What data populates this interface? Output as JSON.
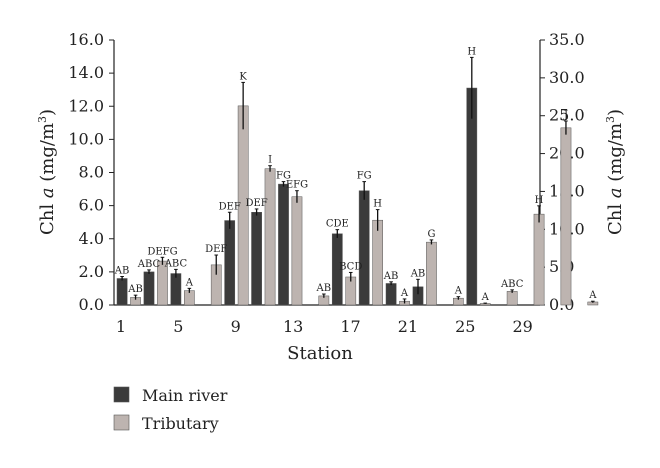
{
  "chart_data": {
    "type": "bar",
    "xlabel": "Station",
    "ylabel_left": {
      "prefix": "Chl ",
      "italic": "a",
      "unit": " (mg/m",
      "sup": "3",
      "close": ")"
    },
    "ylabel_right": {
      "prefix": "Chl ",
      "italic": "a",
      "unit": " (mg/m",
      "sup": "3",
      "close": ")"
    },
    "ylim_left": [
      0,
      16
    ],
    "ylim_right": [
      0,
      35
    ],
    "yticks_left": [
      "0.0",
      "2.0",
      "4.0",
      "6.0",
      "8.0",
      "10.0",
      "12.0",
      "14.0",
      "16.0"
    ],
    "yticks_right": [
      "0.0",
      "5.0",
      "10.0",
      "15.0",
      "20.0",
      "25.0",
      "30.0",
      "35.0"
    ],
    "xticks": [
      "1",
      "5",
      "9",
      "13",
      "17",
      "21",
      "25",
      "29"
    ],
    "x_range": [
      1,
      30
    ],
    "legend": {
      "position": "bottom-left",
      "main_label": "Main river",
      "trib_label": "Tributary"
    },
    "colors": {
      "main": "#3b3b3b",
      "trib": "#bdb4b0"
    },
    "series": [
      {
        "name": "Main river",
        "axis": "left",
        "points": [
          {
            "station": 1,
            "value": 1.6,
            "error": 0.12,
            "label": "AB"
          },
          {
            "station": 3,
            "value": 2.0,
            "error": 0.12,
            "label": "ABC"
          },
          {
            "station": 5,
            "value": 1.9,
            "error": 0.25,
            "label": "ABC"
          },
          {
            "station": 9,
            "value": 5.1,
            "error": 0.5,
            "label": "DEF"
          },
          {
            "station": 11,
            "value": 5.6,
            "error": 0.2,
            "label": "DEF"
          },
          {
            "station": 13,
            "value": 7.3,
            "error": 0.15,
            "label": "FG"
          },
          {
            "station": 17,
            "value": 4.3,
            "error": 0.25,
            "label": "CDE"
          },
          {
            "station": 19,
            "value": 6.9,
            "error": 0.55,
            "label": "FG"
          },
          {
            "station": 21,
            "value": 1.3,
            "error": 0.1,
            "label": "AB"
          },
          {
            "station": 23,
            "value": 1.1,
            "error": 0.45,
            "label": "AB"
          },
          {
            "station": 27,
            "value": 13.1,
            "error": 1.85,
            "label": "H"
          }
        ]
      },
      {
        "name": "Tributary",
        "axis": "right",
        "points": [
          {
            "station": 2,
            "value": 1.0,
            "error": 0.3,
            "label": "AB"
          },
          {
            "station": 4,
            "value": 5.8,
            "error": 0.5,
            "label": "DEFG"
          },
          {
            "station": 6,
            "value": 1.9,
            "error": 0.3,
            "label": "A"
          },
          {
            "station": 8,
            "value": 5.3,
            "error": 1.3,
            "label": "DEF"
          },
          {
            "station": 10,
            "value": 26.3,
            "error": 3.1,
            "label": "K"
          },
          {
            "station": 12,
            "value": 18.0,
            "error": 0.4,
            "label": "I"
          },
          {
            "station": 14,
            "value": 14.3,
            "error": 0.8,
            "label": "EFG"
          },
          {
            "station": 16,
            "value": 1.2,
            "error": 0.25,
            "label": "AB"
          },
          {
            "station": 18,
            "value": 3.7,
            "error": 0.6,
            "label": "BCD"
          },
          {
            "station": 20,
            "value": 11.2,
            "error": 1.4,
            "label": "H"
          },
          {
            "station": 22,
            "value": 0.5,
            "error": 0.3,
            "label": "A"
          },
          {
            "station": 24,
            "value": 8.3,
            "error": 0.3,
            "label": "G"
          },
          {
            "station": 26,
            "value": 0.9,
            "error": 0.2,
            "label": "A"
          },
          {
            "station": 28,
            "value": 0.2,
            "error": 0.05,
            "label": "A"
          },
          {
            "station": 30,
            "value": 1.8,
            "error": 0.2,
            "label": "ABC"
          },
          {
            "station": 32,
            "value": 12.0,
            "error": 1.1,
            "label": "H"
          },
          {
            "station": 34,
            "value": 23.4,
            "error": 0.9,
            "label": "J"
          },
          {
            "station": 36,
            "value": 0.4,
            "error": 0.1,
            "label": "A"
          }
        ]
      }
    ]
  }
}
